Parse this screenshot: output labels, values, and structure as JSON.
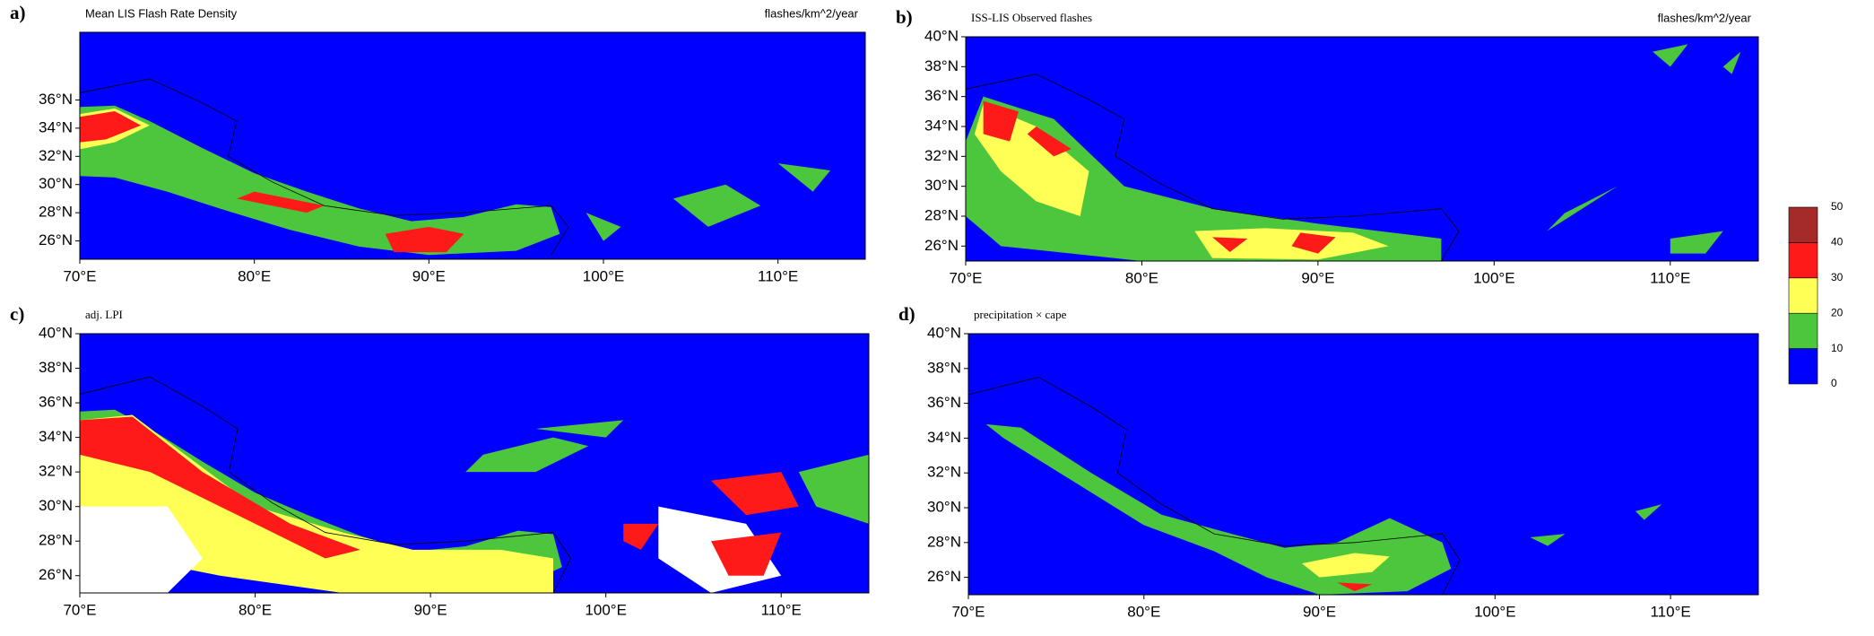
{
  "chart_data": [
    {
      "type": "map",
      "panel": "a)",
      "title": "Mean LIS Flash Rate Density",
      "units": "flashes/km^2/year",
      "xlim": [
        70,
        115
      ],
      "ylim": [
        24.7,
        40.8
      ],
      "xticks": [
        {
          "value": 70,
          "label": "70°E"
        },
        {
          "value": 80,
          "label": "80°E"
        },
        {
          "value": 90,
          "label": "90°E"
        },
        {
          "value": 100,
          "label": "100°E"
        },
        {
          "value": 110,
          "label": "110°E"
        }
      ],
      "yticks": [
        {
          "value": 26,
          "label": "26°N"
        },
        {
          "value": 28,
          "label": "28°N"
        },
        {
          "value": 30,
          "label": "30°N"
        },
        {
          "value": 32,
          "label": "32°N"
        },
        {
          "value": 34,
          "label": "34°N"
        },
        {
          "value": 36,
          "label": "36°N"
        }
      ]
    },
    {
      "type": "map",
      "panel": "b)",
      "title": "ISS-LIS Observed flashes",
      "units": "flashes/km^2/year",
      "xlim": [
        70,
        115
      ],
      "ylim": [
        25,
        40
      ],
      "xticks": [
        {
          "value": 70,
          "label": "70°E"
        },
        {
          "value": 80,
          "label": "80°E"
        },
        {
          "value": 90,
          "label": "90°E"
        },
        {
          "value": 100,
          "label": "100°E"
        },
        {
          "value": 110,
          "label": "110°E"
        }
      ],
      "yticks": [
        {
          "value": 26,
          "label": "26°N"
        },
        {
          "value": 28,
          "label": "28°N"
        },
        {
          "value": 30,
          "label": "30°N"
        },
        {
          "value": 32,
          "label": "32°N"
        },
        {
          "value": 34,
          "label": "34°N"
        },
        {
          "value": 36,
          "label": "36°N"
        },
        {
          "value": 38,
          "label": "38°N"
        },
        {
          "value": 40,
          "label": "40°N"
        }
      ]
    },
    {
      "type": "map",
      "panel": "c)",
      "title": "adj. LPI",
      "xlim": [
        70,
        115
      ],
      "ylim": [
        25,
        40
      ],
      "xticks": [
        {
          "value": 70,
          "label": "70°E"
        },
        {
          "value": 80,
          "label": "80°E"
        },
        {
          "value": 90,
          "label": "90°E"
        },
        {
          "value": 100,
          "label": "100°E"
        },
        {
          "value": 110,
          "label": "110°E"
        }
      ],
      "yticks": [
        {
          "value": 26,
          "label": "26°N"
        },
        {
          "value": 28,
          "label": "28°N"
        },
        {
          "value": 30,
          "label": "30°N"
        },
        {
          "value": 32,
          "label": "32°N"
        },
        {
          "value": 34,
          "label": "34°N"
        },
        {
          "value": 36,
          "label": "36°N"
        },
        {
          "value": 38,
          "label": "38°N"
        },
        {
          "value": 40,
          "label": "40°N"
        }
      ]
    },
    {
      "type": "map",
      "panel": "d)",
      "title": "precipitation × cape",
      "xlim": [
        70,
        115
      ],
      "ylim": [
        25,
        40
      ],
      "xticks": [
        {
          "value": 70,
          "label": "70°E"
        },
        {
          "value": 80,
          "label": "80°E"
        },
        {
          "value": 90,
          "label": "90°E"
        },
        {
          "value": 100,
          "label": "100°E"
        },
        {
          "value": 110,
          "label": "110°E"
        }
      ],
      "yticks": [
        {
          "value": 26,
          "label": "26°N"
        },
        {
          "value": 28,
          "label": "28°N"
        },
        {
          "value": 30,
          "label": "30°N"
        },
        {
          "value": 32,
          "label": "32°N"
        },
        {
          "value": 34,
          "label": "34°N"
        },
        {
          "value": 36,
          "label": "36°N"
        },
        {
          "value": 38,
          "label": "38°N"
        },
        {
          "value": 40,
          "label": "40°N"
        }
      ]
    },
    {
      "type": "colorbar",
      "levels": [
        0,
        10,
        20,
        30,
        40,
        50
      ],
      "colors": [
        "#0000ff",
        "#4cc63c",
        "#ffff55",
        "#ff1a1a",
        "#a52a2a"
      ]
    }
  ]
}
